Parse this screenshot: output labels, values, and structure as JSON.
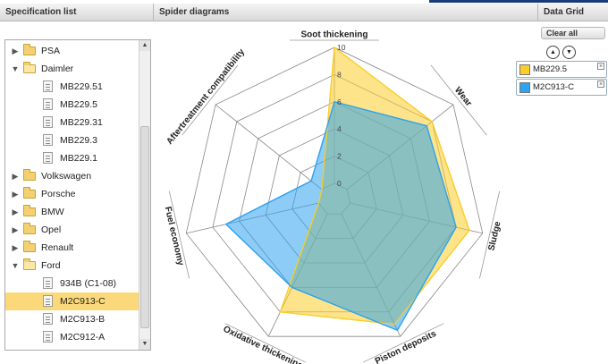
{
  "header": {
    "spec_list": "Specification list",
    "spider": "Spider diagrams",
    "grid": "Data Grid"
  },
  "tree": [
    {
      "type": "group",
      "label": "PSA",
      "open": false
    },
    {
      "type": "group",
      "label": "Daimler",
      "open": true
    },
    {
      "type": "leaf",
      "label": "MB229.51"
    },
    {
      "type": "leaf",
      "label": "MB229.5"
    },
    {
      "type": "leaf",
      "label": "MB229.31"
    },
    {
      "type": "leaf",
      "label": "MB229.3"
    },
    {
      "type": "leaf",
      "label": "MB229.1"
    },
    {
      "type": "group",
      "label": "Volkswagen",
      "open": false
    },
    {
      "type": "group",
      "label": "Porsche",
      "open": false
    },
    {
      "type": "group",
      "label": "BMW",
      "open": false
    },
    {
      "type": "group",
      "label": "Opel",
      "open": false
    },
    {
      "type": "group",
      "label": "Renault",
      "open": false
    },
    {
      "type": "group",
      "label": "Ford",
      "open": true
    },
    {
      "type": "leaf",
      "label": "934B (C1-08)"
    },
    {
      "type": "leaf",
      "label": "M2C913-C",
      "selected": true
    },
    {
      "type": "leaf",
      "label": "M2C913-B"
    },
    {
      "type": "leaf",
      "label": "M2C912-A"
    }
  ],
  "data_grid": {
    "clear_label": "Clear all",
    "up_icon": "▲",
    "down_icon": "▼",
    "close_icon": "×",
    "series": [
      {
        "name": "MB229.5",
        "color": "#fbcd2a"
      },
      {
        "name": "M2C913-C",
        "color": "#2ea3ee"
      }
    ]
  },
  "chart_data": {
    "type": "radar",
    "axes": [
      "Soot thickening",
      "Wear",
      "Sludge",
      "Piston deposits",
      "Oxidative thickening",
      "Fuel economy",
      "Aftertreatment compatibility"
    ],
    "rmax": 10,
    "ticks": [
      0,
      2,
      4,
      6,
      8,
      10
    ],
    "series": [
      {
        "name": "MB229.5",
        "color": "#fbcd2a",
        "values": [
          10,
          8,
          9,
          9,
          8,
          0,
          0
        ]
      },
      {
        "name": "M2C913-C",
        "color": "#2ea3ee",
        "values": [
          6,
          7.5,
          8,
          9.5,
          6,
          7,
          1
        ]
      }
    ]
  }
}
